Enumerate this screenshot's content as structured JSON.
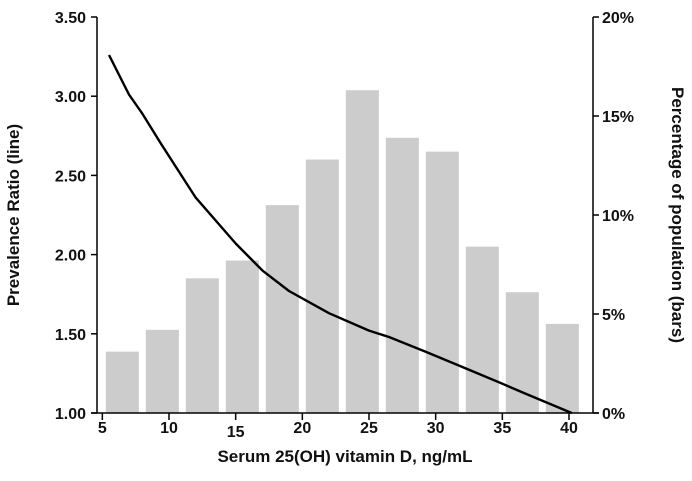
{
  "chart_data": {
    "type": "bar+line",
    "title": "",
    "xlabel": "Serum 25(OH) vitamin D, ng/mL",
    "ylabel_left": "Prevalence Ratio (line)",
    "ylabel_right": "Percentage of population (bars)",
    "xlim": [
      4.6,
      41.8
    ],
    "ylim_left": [
      1.0,
      3.5
    ],
    "ylim_right": [
      0,
      20
    ],
    "x_ticks": [
      "5",
      "10",
      "15",
      "20",
      "25",
      "30",
      "35",
      "40"
    ],
    "x_tick_values": [
      5,
      10,
      15,
      20,
      25,
      30,
      35,
      40
    ],
    "y_left_ticks": [
      "1.00",
      "1.50",
      "2.00",
      "2.50",
      "3.00",
      "3.50"
    ],
    "y_left_tick_values": [
      1.0,
      1.5,
      2.0,
      2.5,
      3.0,
      3.5
    ],
    "y_right_ticks": [
      "0%",
      "5%",
      "10%",
      "15%",
      "20%"
    ],
    "y_right_tick_values": [
      0,
      5,
      10,
      15,
      20
    ],
    "grid": false,
    "bars": {
      "x": [
        6.5,
        9.5,
        12.5,
        15.5,
        18.5,
        21.5,
        24.5,
        27.5,
        30.5,
        33.5,
        36.5,
        39.5
      ],
      "values_percent": [
        3.1,
        4.2,
        6.8,
        7.7,
        10.5,
        12.8,
        16.3,
        13.9,
        13.2,
        8.4,
        6.1,
        4.5
      ],
      "color": "#cccccc"
    },
    "line": {
      "x": [
        5.5,
        7.0,
        8.0,
        9.4,
        12.0,
        15.0,
        17.0,
        19.0,
        22.0,
        25.0,
        26.5,
        29.3,
        32.3,
        35.0,
        36.8,
        40.2
      ],
      "y": [
        3.26,
        3.01,
        2.89,
        2.7,
        2.36,
        2.07,
        1.9,
        1.77,
        1.63,
        1.52,
        1.48,
        1.385,
        1.28,
        1.185,
        1.12,
        1.0
      ],
      "color": "#000000"
    }
  }
}
